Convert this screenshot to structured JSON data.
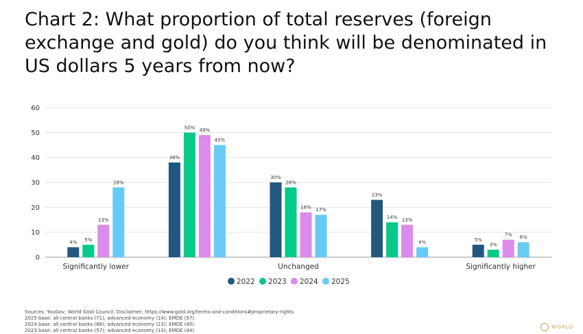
{
  "title": "Chart 2: What proportion of total reserves (foreign exchange and gold) do you think will be denominated in US dollars 5 years from now?",
  "chart_data": {
    "type": "bar",
    "categories": [
      "Significantly lower",
      "",
      "Unchanged",
      "",
      "Significantly higher"
    ],
    "series": [
      {
        "name": "2022",
        "color": "#22577f",
        "values": [
          4,
          38,
          30,
          23,
          5
        ]
      },
      {
        "name": "2023",
        "color": "#06c98a",
        "values": [
          5,
          50,
          28,
          14,
          3
        ]
      },
      {
        "name": "2024",
        "color": "#da8bec",
        "values": [
          13,
          49,
          18,
          13,
          7
        ]
      },
      {
        "name": "2025",
        "color": "#67cbf5",
        "values": [
          28,
          45,
          17,
          4,
          6
        ]
      }
    ],
    "data_labels": [
      [
        "4%",
        "38%",
        "30%",
        "23%",
        "5%"
      ],
      [
        "5%",
        "50%",
        "28%",
        "14%",
        "3%"
      ],
      [
        "13%",
        "49%",
        "18%",
        "13%",
        "7%"
      ],
      [
        "28%",
        "45%",
        "17%",
        "4%",
        "6%"
      ]
    ],
    "yticks": [
      0,
      10,
      20,
      30,
      40,
      50,
      60
    ],
    "ylim": [
      0,
      60
    ],
    "grid": true,
    "legend": "bottom-center"
  },
  "footnotes": [
    "Sources: YouGov, World Gold Council; Disclaimer: https://www.gold.org/terms-and-conditions#proprietary-rights",
    "2025 base: all central banks (71); advanced economy (14); EMDE (57).",
    "2024 base: all central banks (68); advanced economy (23); EMDE (45).",
    "2023 base: all central banks (57); advanced economy (13); EMDE (44)."
  ],
  "logo_text": "WORLD"
}
